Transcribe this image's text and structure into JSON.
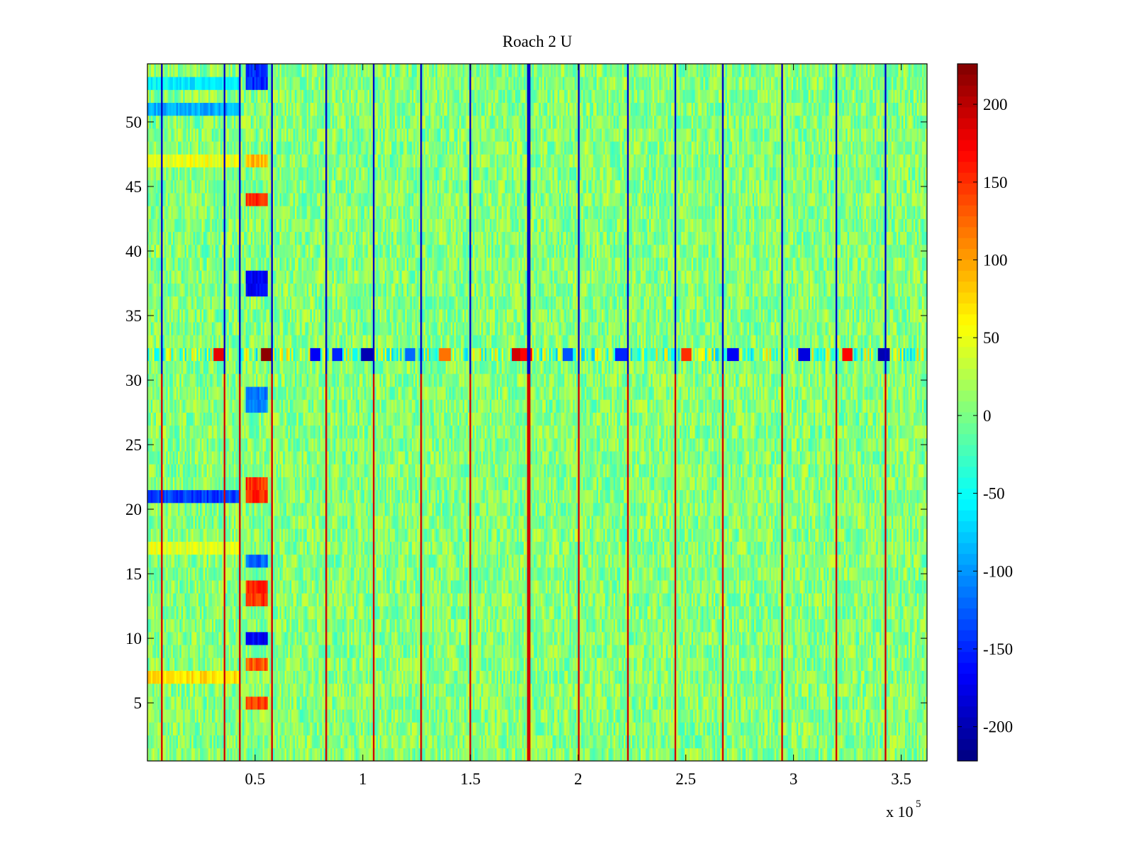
{
  "chart_data": {
    "type": "heatmap",
    "title": "Roach 2 U",
    "xlabel": "",
    "ylabel": "",
    "x_exponent_label": "x 10",
    "x_exponent_power": "5",
    "xlim": [
      0,
      3.62
    ],
    "ylim": [
      0.5,
      54.5
    ],
    "xticks": [
      0.5,
      1,
      1.5,
      2,
      2.5,
      3,
      3.5
    ],
    "xtick_labels": [
      "0.5",
      "1",
      "1.5",
      "2",
      "2.5",
      "3",
      "3.5"
    ],
    "yticks": [
      5,
      10,
      15,
      20,
      25,
      30,
      35,
      40,
      45,
      50
    ],
    "ytick_labels": [
      "5",
      "10",
      "15",
      "20",
      "25",
      "30",
      "35",
      "40",
      "45",
      "50"
    ],
    "colormap": "jet",
    "clim": [
      -222,
      226
    ],
    "colorbar_ticks": [
      -200,
      -150,
      -100,
      -50,
      0,
      50,
      100,
      150,
      200
    ],
    "colorbar_tick_labels": [
      "-200",
      "-150",
      "-100",
      "-50",
      "0",
      "50",
      "100",
      "150",
      "200"
    ],
    "rows": 54,
    "background_value": 5,
    "noise_amplitude": 35,
    "periodic_columns_x": [
      0.065,
      0.36,
      0.43,
      0.58,
      0.83,
      1.05,
      1.27,
      1.5,
      1.77,
      2.0,
      2.23,
      2.45,
      2.67,
      2.95,
      3.2,
      3.43
    ],
    "periodic_column_values_rows_above_30": -190,
    "periodic_column_values_rows_below_30": 190,
    "highlight_row": 32,
    "highlight_row_strong_values": [
      {
        "x": 0.55,
        "value": 220
      },
      {
        "x": 0.33,
        "value": 180
      },
      {
        "x": 0.78,
        "value": -170
      },
      {
        "x": 0.88,
        "value": -150
      },
      {
        "x": 1.02,
        "value": -200
      },
      {
        "x": 1.22,
        "value": -120
      },
      {
        "x": 1.38,
        "value": 120
      },
      {
        "x": 1.72,
        "value": 190
      },
      {
        "x": 1.76,
        "value": 170
      },
      {
        "x": 1.95,
        "value": -130
      },
      {
        "x": 2.2,
        "value": -150
      },
      {
        "x": 2.5,
        "value": 150
      },
      {
        "x": 2.72,
        "value": -170
      },
      {
        "x": 3.05,
        "value": -180
      },
      {
        "x": 3.25,
        "value": 170
      },
      {
        "x": 3.42,
        "value": -200
      }
    ],
    "blocks": [
      {
        "x_start": 0.0,
        "x_end": 0.43,
        "row_start": 21,
        "row_end": 21,
        "value": -140
      },
      {
        "x_start": 0.0,
        "x_end": 0.43,
        "row_start": 51,
        "row_end": 51,
        "value": -90
      },
      {
        "x_start": 0.0,
        "x_end": 0.43,
        "row_start": 53,
        "row_end": 53,
        "value": -60
      },
      {
        "x_start": 0.0,
        "x_end": 0.43,
        "row_start": 47,
        "row_end": 47,
        "value": 50
      },
      {
        "x_start": 0.0,
        "x_end": 0.43,
        "row_start": 17,
        "row_end": 17,
        "value": 45
      },
      {
        "x_start": 0.0,
        "x_end": 0.43,
        "row_start": 7,
        "row_end": 7,
        "value": 70
      },
      {
        "x_start": 0.46,
        "x_end": 0.56,
        "row_start": 53,
        "row_end": 54,
        "value": -150
      },
      {
        "x_start": 0.46,
        "x_end": 0.56,
        "row_start": 47,
        "row_end": 47,
        "value": 90
      },
      {
        "x_start": 0.46,
        "x_end": 0.56,
        "row_start": 44,
        "row_end": 44,
        "value": 150
      },
      {
        "x_start": 0.46,
        "x_end": 0.56,
        "row_start": 37,
        "row_end": 38,
        "value": -170
      },
      {
        "x_start": 0.46,
        "x_end": 0.56,
        "row_start": 28,
        "row_end": 29,
        "value": -110
      },
      {
        "x_start": 0.46,
        "x_end": 0.56,
        "row_start": 21,
        "row_end": 22,
        "value": 150
      },
      {
        "x_start": 0.46,
        "x_end": 0.56,
        "row_start": 16,
        "row_end": 16,
        "value": -120
      },
      {
        "x_start": 0.46,
        "x_end": 0.56,
        "row_start": 13,
        "row_end": 14,
        "value": 150
      },
      {
        "x_start": 0.46,
        "x_end": 0.56,
        "row_start": 10,
        "row_end": 10,
        "value": -170
      },
      {
        "x_start": 0.46,
        "x_end": 0.56,
        "row_start": 8,
        "row_end": 8,
        "value": 130
      },
      {
        "x_start": 0.46,
        "x_end": 0.56,
        "row_start": 5,
        "row_end": 5,
        "value": 140
      }
    ]
  }
}
